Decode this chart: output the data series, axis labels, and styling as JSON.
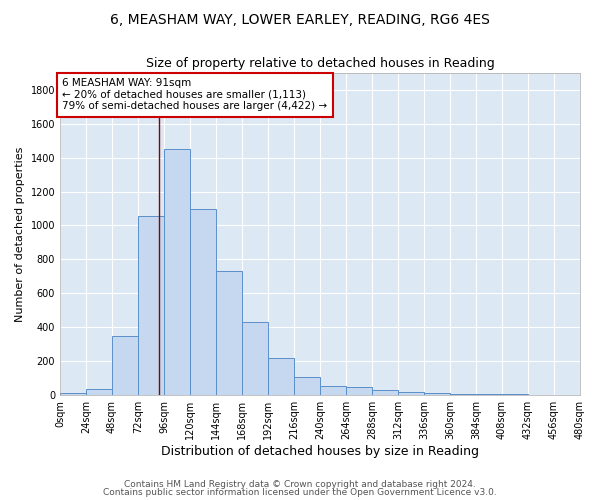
{
  "title1": "6, MEASHAM WAY, LOWER EARLEY, READING, RG6 4ES",
  "title2": "Size of property relative to detached houses in Reading",
  "xlabel": "Distribution of detached houses by size in Reading",
  "ylabel": "Number of detached properties",
  "bin_edges": [
    0,
    24,
    48,
    72,
    96,
    120,
    144,
    168,
    192,
    216,
    240,
    264,
    288,
    312,
    336,
    360,
    384,
    408,
    432,
    456,
    480
  ],
  "bar_heights": [
    10,
    35,
    345,
    1055,
    1450,
    1095,
    730,
    430,
    215,
    105,
    55,
    45,
    30,
    17,
    12,
    6,
    4,
    2,
    1,
    1
  ],
  "bar_color": "#c5d8f0",
  "bar_edge_color": "#5b8fc9",
  "background_color": "#dce9f5",
  "grid_color": "#ffffff",
  "vline_x": 91,
  "vline_color": "#8b0000",
  "annotation_text": "6 MEASHAM WAY: 91sqm\n← 20% of detached houses are smaller (1,113)\n79% of semi-detached houses are larger (4,422) →",
  "annotation_box_color": "#ffffff",
  "annotation_box_edge": "#cc0000",
  "ylim": [
    0,
    1900
  ],
  "yticks": [
    0,
    200,
    400,
    600,
    800,
    1000,
    1200,
    1400,
    1600,
    1800
  ],
  "xtick_labels": [
    "0sqm",
    "24sqm",
    "48sqm",
    "72sqm",
    "96sqm",
    "120sqm",
    "144sqm",
    "168sqm",
    "192sqm",
    "216sqm",
    "240sqm",
    "264sqm",
    "288sqm",
    "312sqm",
    "336sqm",
    "360sqm",
    "384sqm",
    "408sqm",
    "432sqm",
    "456sqm",
    "480sqm"
  ],
  "footer1": "Contains HM Land Registry data © Crown copyright and database right 2024.",
  "footer2": "Contains public sector information licensed under the Open Government Licence v3.0.",
  "title1_fontsize": 10,
  "title2_fontsize": 9,
  "xlabel_fontsize": 9,
  "ylabel_fontsize": 8,
  "tick_fontsize": 7,
  "footer_fontsize": 6.5,
  "annot_fontsize": 7.5
}
